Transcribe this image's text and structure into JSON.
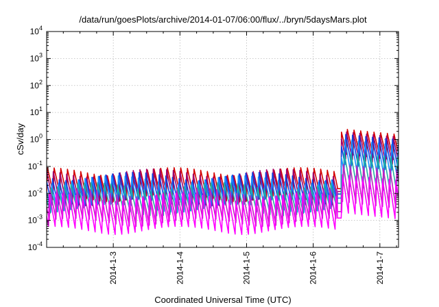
{
  "chart_data": {
    "type": "line",
    "title": "/data/run/goesPlots/archive/2014-01-07/06:00/flux/../bryn/5daysMars.plot",
    "xlabel": "Coordinated Universal Time (UTC)",
    "ylabel": "cSv/day",
    "x_range_days": [
      2.0,
      7.28
    ],
    "x_ticks": [
      {
        "at": 3,
        "label": "2014-1-3"
      },
      {
        "at": 4,
        "label": "2014-1-4"
      },
      {
        "at": 5,
        "label": "2014-1-5"
      },
      {
        "at": 6,
        "label": "2014-1-6"
      },
      {
        "at": 7,
        "label": "2014-1-7"
      }
    ],
    "y_scale": "log",
    "ylim": [
      0.0001,
      10000
    ],
    "y_ticks": [
      {
        "exp": -4,
        "base": "10",
        "sup": "-4"
      },
      {
        "exp": -3,
        "base": "10",
        "sup": "-3"
      },
      {
        "exp": -2,
        "base": "10",
        "sup": "-2"
      },
      {
        "exp": -1,
        "base": "10",
        "sup": "-1"
      },
      {
        "exp": 0,
        "base": "10",
        "sup": "0"
      },
      {
        "exp": 1,
        "base": "10",
        "sup": "1"
      },
      {
        "exp": 2,
        "base": "10",
        "sup": "2"
      },
      {
        "exp": 3,
        "base": "10",
        "sup": "3"
      },
      {
        "exp": 4,
        "base": "10",
        "sup": "4"
      }
    ],
    "grid": true,
    "sawtooth_period_days": 0.1,
    "event_onset_day": 6.42,
    "series": [
      {
        "color": "#d40000",
        "peak_quiet": 0.09,
        "trough_quiet": 0.01,
        "peak_event": 2.5,
        "trough_event": 0.3
      },
      {
        "color": "#a0006a",
        "peak_quiet": 0.08,
        "trough_quiet": 0.007,
        "peak_event": 2.0,
        "trough_event": 0.2
      },
      {
        "color": "#1040e0",
        "peak_quiet": 0.06,
        "trough_quiet": 0.006,
        "peak_event": 1.6,
        "trough_event": 0.12
      },
      {
        "color": "#1a90ff",
        "peak_quiet": 0.045,
        "trough_quiet": 0.004,
        "peak_event": 1.0,
        "trough_event": 0.06
      },
      {
        "color": "#20b0a0",
        "peak_quiet": 0.025,
        "trough_quiet": 0.003,
        "peak_event": 0.35,
        "trough_event": 0.02
      },
      {
        "color": "#c020c0",
        "peak_quiet": 0.015,
        "trough_quiet": 0.0012,
        "peak_event": 0.12,
        "trough_event": 0.005
      },
      {
        "color": "#ff00ff",
        "peak_quiet": 0.01,
        "trough_quiet": 0.0006,
        "peak_event": 0.05,
        "trough_event": 0.002
      }
    ]
  }
}
